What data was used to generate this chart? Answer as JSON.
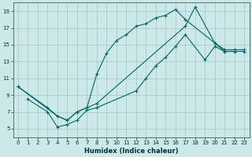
{
  "xlabel": "Humidex (Indice chaleur)",
  "bg_color": "#cce8e8",
  "grid_color": "#aacccc",
  "line_color": "#006666",
  "xlim": [
    -0.5,
    23.5
  ],
  "ylim": [
    4,
    20
  ],
  "xticks": [
    0,
    1,
    2,
    3,
    4,
    5,
    6,
    7,
    8,
    9,
    10,
    11,
    12,
    13,
    14,
    15,
    16,
    17,
    18,
    19,
    20,
    21,
    22,
    23
  ],
  "yticks": [
    5,
    7,
    9,
    11,
    13,
    15,
    17,
    19
  ],
  "series": [
    {
      "x": [
        0,
        3,
        4,
        5,
        6,
        7,
        8,
        9,
        10,
        11,
        12,
        13,
        14,
        15,
        16,
        17,
        20,
        21,
        22
      ],
      "y": [
        10,
        7.5,
        6.5,
        6.0,
        7.0,
        7.5,
        11.5,
        14.0,
        15.5,
        16.2,
        17.2,
        17.5,
        18.2,
        18.5,
        19.2,
        18.0,
        15.2,
        14.2,
        14.2
      ]
    },
    {
      "x": [
        0,
        4,
        5,
        6,
        7,
        8,
        17,
        18,
        20,
        21,
        22,
        23
      ],
      "y": [
        10,
        6.5,
        6.0,
        7.0,
        7.5,
        8.0,
        17.2,
        19.5,
        15.2,
        14.4,
        14.4,
        14.4
      ]
    },
    {
      "x": [
        1,
        3,
        4,
        5,
        6,
        7,
        8,
        12,
        13,
        14,
        15,
        16,
        17,
        19,
        20,
        21,
        22,
        23
      ],
      "y": [
        8.5,
        7.0,
        5.2,
        5.5,
        6.0,
        7.2,
        7.5,
        9.5,
        11.0,
        12.5,
        13.5,
        14.8,
        16.2,
        13.2,
        14.8,
        14.2,
        14.2,
        14.2
      ]
    }
  ]
}
